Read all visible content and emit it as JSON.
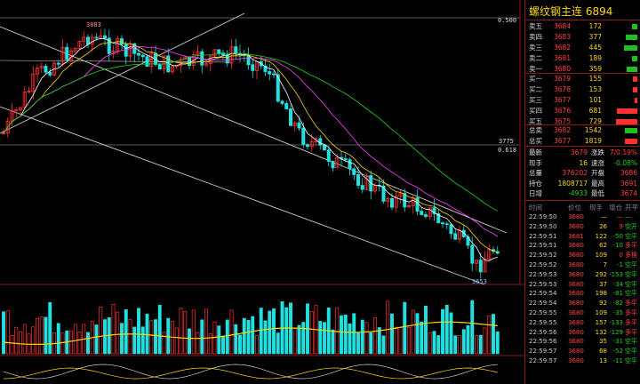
{
  "chart": {
    "axis_top": "0.500",
    "axis_mid": "0.618",
    "price_3775": "3775",
    "high_label": "3883",
    "low_label": "3653",
    "colors": {
      "up": "#ff3030",
      "down": "#20e0e0",
      "ma1": "#ffffff",
      "ma2": "#ffd800",
      "ma3": "#ff40ff",
      "ma4": "#20d020"
    }
  },
  "panel": {
    "title": "螺纹钢主连  6894",
    "asks": [
      {
        "label": "卖五",
        "price": "3684",
        "vol": "172"
      },
      {
        "label": "卖四",
        "price": "3683",
        "vol": "377"
      },
      {
        "label": "卖三",
        "price": "3682",
        "vol": "445"
      },
      {
        "label": "卖二",
        "price": "3681",
        "vol": "189"
      },
      {
        "label": "卖一",
        "price": "3680",
        "vol": "359"
      }
    ],
    "bids": [
      {
        "label": "买一",
        "price": "3679",
        "vol": "155"
      },
      {
        "label": "买二",
        "price": "3678",
        "vol": "153"
      },
      {
        "label": "买三",
        "price": "3677",
        "vol": "101"
      },
      {
        "label": "买四",
        "price": "3676",
        "vol": "681"
      },
      {
        "label": "买五",
        "price": "3675",
        "vol": "729"
      }
    ],
    "totals": [
      {
        "label": "总卖",
        "price": "3682",
        "vol": "1542"
      },
      {
        "label": "总买",
        "price": "3677",
        "vol": "1819"
      }
    ],
    "stats": [
      {
        "k1": "最新",
        "v1": "3679",
        "k2": "涨跌",
        "v2": "7/0.19%"
      },
      {
        "k1": "现手",
        "v1": "16",
        "k2": "速涨",
        "v2": "-0.08%"
      },
      {
        "k1": "总量",
        "v1": "376202",
        "k2": "开盘",
        "v2": "3686"
      },
      {
        "k1": "持仓",
        "v1": "1808717",
        "k2": "最高",
        "v2": "3691"
      },
      {
        "k1": "日增",
        "v1": "-4933",
        "k2": "最低",
        "v2": "3674"
      }
    ],
    "ticks_header": {
      "time": "时间",
      "price": "价位",
      "vol": "现手",
      "oi": "增仓",
      "kind": "开平"
    },
    "ticks": [
      {
        "time": "22:59:50",
        "price": "3680",
        "vol": "—",
        "oi": "—",
        "kind": "—"
      },
      {
        "time": "22:59:50",
        "price": "3680",
        "vol": "26",
        "oi": "9",
        "kind": "空开"
      },
      {
        "time": "22:59:51",
        "price": "3681",
        "vol": "122",
        "oi": "-50",
        "kind": "空平"
      },
      {
        "time": "22:59:51",
        "price": "3680",
        "vol": "62",
        "oi": "-10",
        "kind": "多平"
      },
      {
        "time": "22:59:52",
        "price": "3680",
        "vol": "109",
        "oi": "0",
        "kind": "多换"
      },
      {
        "time": "22:59:52",
        "price": "3680",
        "vol": "7",
        "oi": "-1",
        "kind": "空平"
      },
      {
        "time": "22:59:53",
        "price": "3680",
        "vol": "292",
        "oi": "-153",
        "kind": "空平"
      },
      {
        "time": "22:59:53",
        "price": "3680",
        "vol": "37",
        "oi": "-34",
        "kind": "空平"
      },
      {
        "time": "22:59:54",
        "price": "3680",
        "vol": "198",
        "oi": "-81",
        "kind": "空平"
      },
      {
        "time": "22:59:54",
        "price": "3680",
        "vol": "92",
        "oi": "-82",
        "kind": "多平"
      },
      {
        "time": "22:59:55",
        "price": "3680",
        "vol": "109",
        "oi": "-35",
        "kind": "多平"
      },
      {
        "time": "22:59:55",
        "price": "3680",
        "vol": "157",
        "oi": "-133",
        "kind": "多平"
      },
      {
        "time": "22:59:56",
        "price": "3680",
        "vol": "132",
        "oi": "-129",
        "kind": "多平"
      },
      {
        "time": "22:59:56",
        "price": "3680",
        "vol": "35",
        "oi": "-31",
        "kind": "空平"
      },
      {
        "time": "22:59:57",
        "price": "3680",
        "vol": "68",
        "oi": "-52",
        "kind": "空平"
      },
      {
        "time": "22:59:57",
        "price": "3680",
        "vol": "13",
        "oi": "-11",
        "kind": "空平"
      }
    ]
  }
}
